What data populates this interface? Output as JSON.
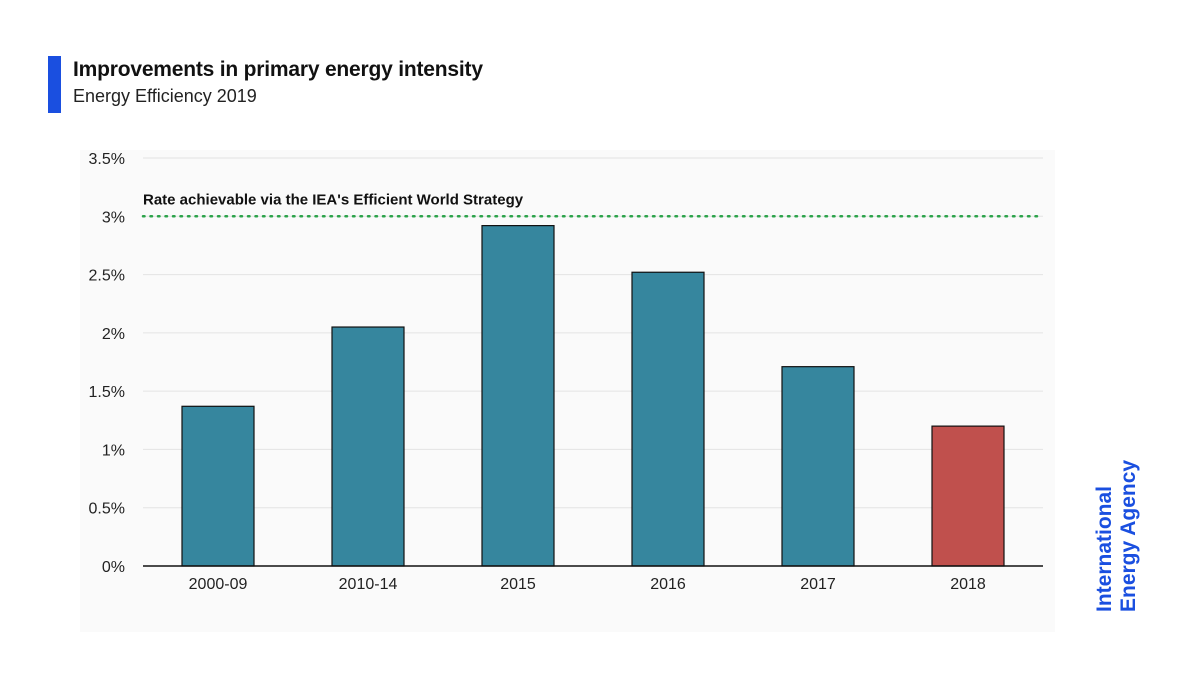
{
  "header": {
    "title": "Improvements in primary energy intensity",
    "subtitle": "Energy Efficiency 2019"
  },
  "logo": {
    "line1": "International",
    "line2": "Energy Agency"
  },
  "colors": {
    "accent": "#1a4fe0",
    "bar": "#36869e",
    "highlight_bar": "#c0504d",
    "reference_line": "#2ca34a",
    "grid": "#e3e3e3",
    "logo": "#1a4fe0"
  },
  "chart_data": {
    "type": "bar",
    "title": "Improvements in primary energy intensity",
    "subtitle": "Energy Efficiency 2019",
    "categories": [
      "2000-09",
      "2010-14",
      "2015",
      "2016",
      "2017",
      "2018"
    ],
    "values": [
      1.37,
      2.05,
      2.92,
      2.52,
      1.71,
      1.2
    ],
    "highlight": [
      "2018"
    ],
    "unit": "%",
    "ylim": [
      0,
      3.5
    ],
    "yticks": [
      0,
      0.5,
      1,
      1.5,
      2,
      2.5,
      3,
      3.5
    ],
    "ytick_labels": [
      "0%",
      "0.5%",
      "1%",
      "1.5%",
      "2%",
      "2.5%",
      "3%",
      "3.5%"
    ],
    "xlabel": "",
    "ylabel": "",
    "grid": true,
    "reference_line": {
      "value": 3,
      "label": "Rate achievable via the IEA's Efficient World Strategy",
      "style": "dotted"
    }
  }
}
